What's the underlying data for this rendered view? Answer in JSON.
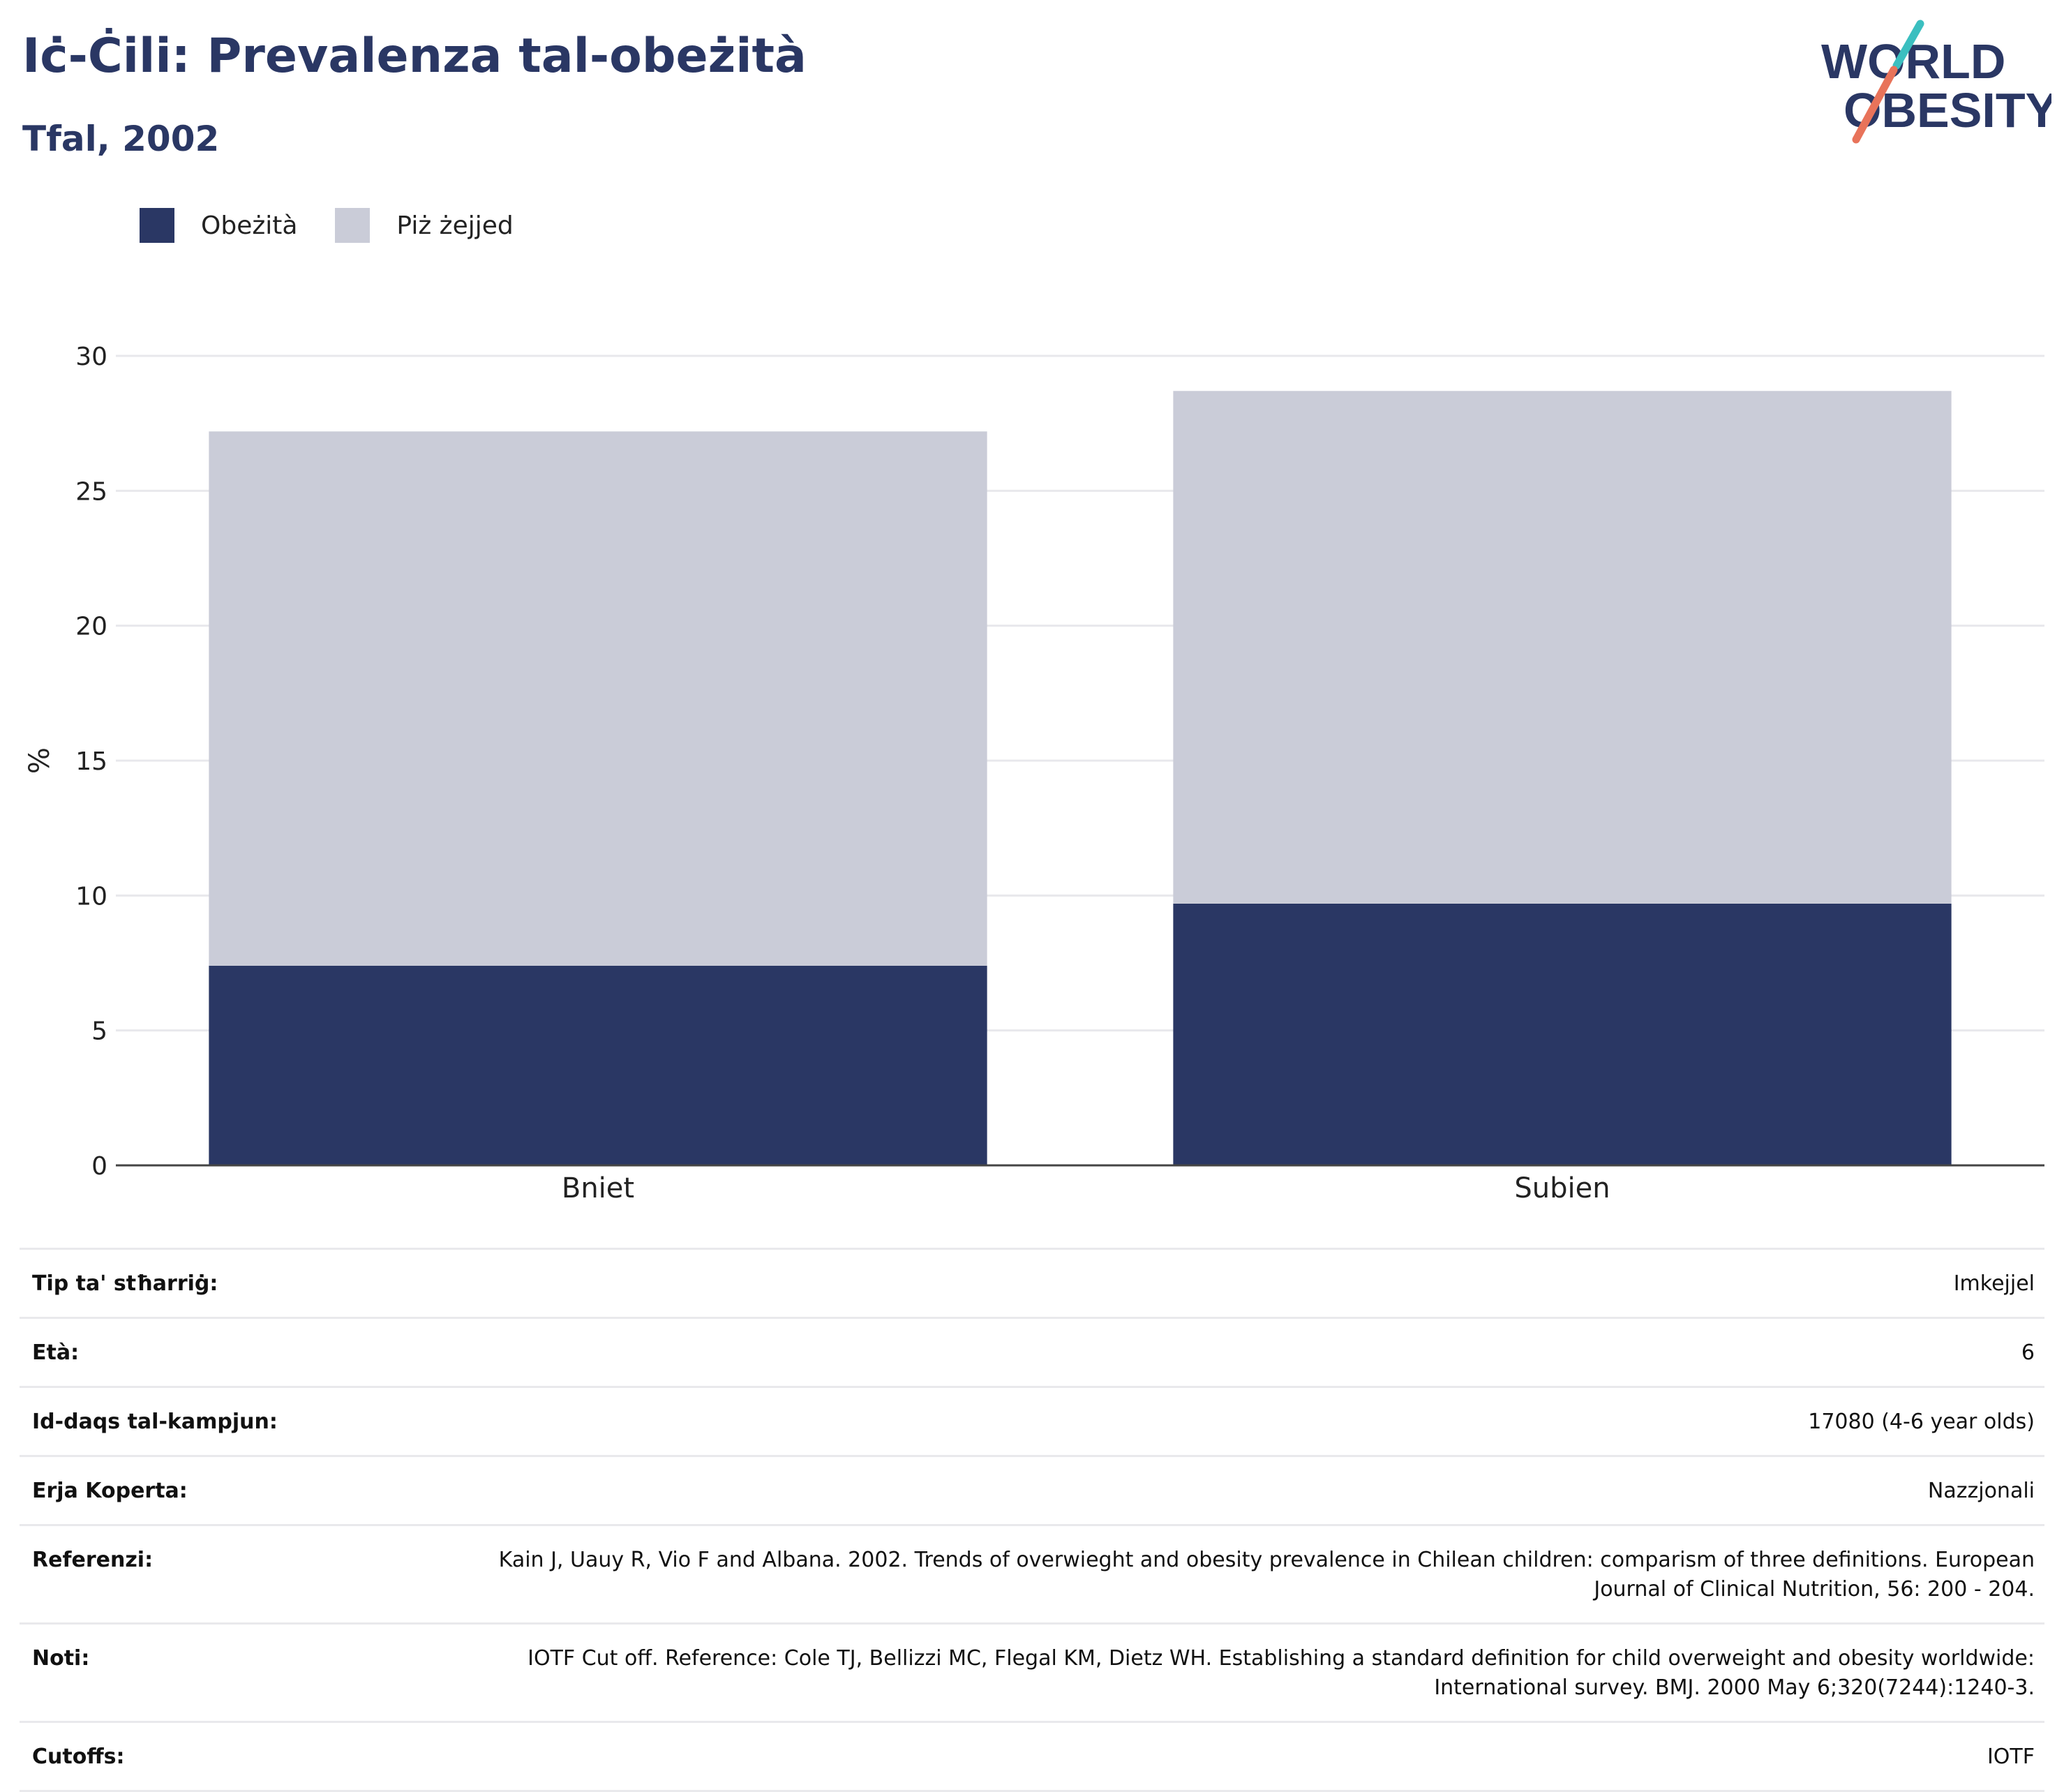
{
  "header": {
    "title": "Iċ-Ċili: Prevalenza tal-obeżità",
    "subtitle": "Tfal, 2002"
  },
  "logo": {
    "line1": "WORLD",
    "line2": "OBESITY"
  },
  "colors": {
    "accent": "#2a3764",
    "obesity": "#2a3764",
    "overweight": "#caccd8",
    "logo_teal": "#3bbfc0",
    "logo_coral": "#e8735a"
  },
  "chart_data": {
    "type": "bar",
    "stacked": true,
    "categories": [
      "Bniet",
      "Subien"
    ],
    "series": [
      {
        "name": "Obeżità",
        "values": [
          7.4,
          9.7
        ]
      },
      {
        "name": "Piż żejjed",
        "values": [
          19.8,
          19.0
        ]
      }
    ],
    "ylabel": "%",
    "ylim": [
      0,
      30
    ],
    "yticks": [
      0,
      5,
      10,
      15,
      20,
      25,
      30
    ],
    "grid": true,
    "legend_position": "top-left"
  },
  "info": [
    {
      "label": "Tip ta' stħarriġ:",
      "value": "Imkejjel"
    },
    {
      "label": "Età:",
      "value": "6"
    },
    {
      "label": "Id-daqs tal-kampjun:",
      "value": "17080 (4-6 year olds)"
    },
    {
      "label": "Erja Koperta:",
      "value": "Nazzjonali"
    },
    {
      "label": "Referenzi:",
      "value": "Kain J, Uauy R, Vio F and Albana. 2002. Trends of overwieght and obesity prevalence in Chilean children: comparism of three definitions. European Journal of Clinical Nutrition, 56: 200 - 204."
    },
    {
      "label": "Noti:",
      "value": "IOTF Cut off. Reference: Cole TJ, Bellizzi MC, Flegal KM, Dietz WH. Establishing a standard definition for child overweight and obesity worldwide: International survey. BMJ. 2000 May 6;320(7244):1240-3."
    },
    {
      "label": "Cutoffs:",
      "value": "IOTF"
    }
  ]
}
